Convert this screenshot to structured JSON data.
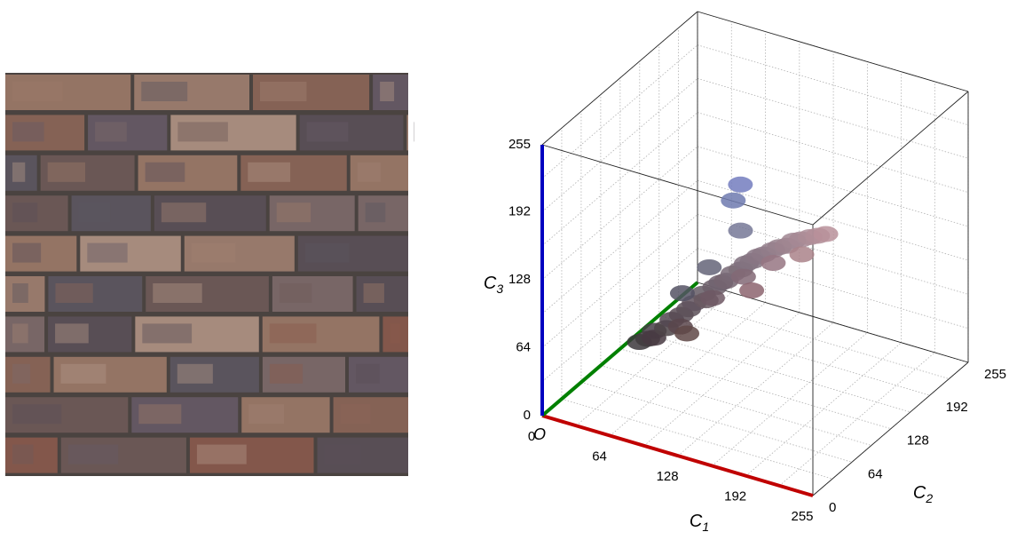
{
  "chart_data": {
    "type": "scatter3d",
    "x_label": {
      "text": "C",
      "subscript": "1"
    },
    "y_label": {
      "text": "C",
      "subscript": "2"
    },
    "z_label": {
      "text": "C",
      "subscript": "3"
    },
    "origin_label": "O",
    "xlim": [
      0,
      255
    ],
    "ylim": [
      0,
      255
    ],
    "zlim": [
      0,
      255
    ],
    "xticks": [
      0,
      64,
      128,
      192,
      255
    ],
    "yticks": [
      0,
      64,
      128,
      192,
      255
    ],
    "zticks": [
      0,
      64,
      128,
      192,
      255
    ],
    "grid": true,
    "axis_colors": {
      "x": "#c00000",
      "y": "#008000",
      "z": "#0000c0"
    },
    "x": [
      60,
      65,
      70,
      72,
      78,
      82,
      88,
      92,
      96,
      100,
      104,
      108,
      112,
      116,
      120,
      124,
      128,
      132,
      136,
      140,
      146,
      150,
      156,
      160,
      166,
      172,
      178,
      184,
      90,
      110,
      130,
      150,
      170,
      85,
      100,
      118,
      110,
      115,
      95,
      140
    ],
    "y": [
      55,
      60,
      62,
      58,
      68,
      70,
      75,
      80,
      82,
      90,
      88,
      95,
      98,
      100,
      104,
      110,
      112,
      115,
      118,
      120,
      124,
      128,
      130,
      134,
      136,
      140,
      142,
      145,
      70,
      88,
      104,
      118,
      130,
      82,
      100,
      120,
      122,
      125,
      72,
      100
    ],
    "z": [
      60,
      62,
      70,
      66,
      72,
      80,
      84,
      88,
      94,
      100,
      96,
      106,
      110,
      112,
      118,
      120,
      126,
      128,
      132,
      134,
      138,
      140,
      142,
      146,
      148,
      150,
      152,
      154,
      76,
      100,
      118,
      130,
      138,
      100,
      120,
      150,
      175,
      190,
      70,
      110
    ]
  }
}
